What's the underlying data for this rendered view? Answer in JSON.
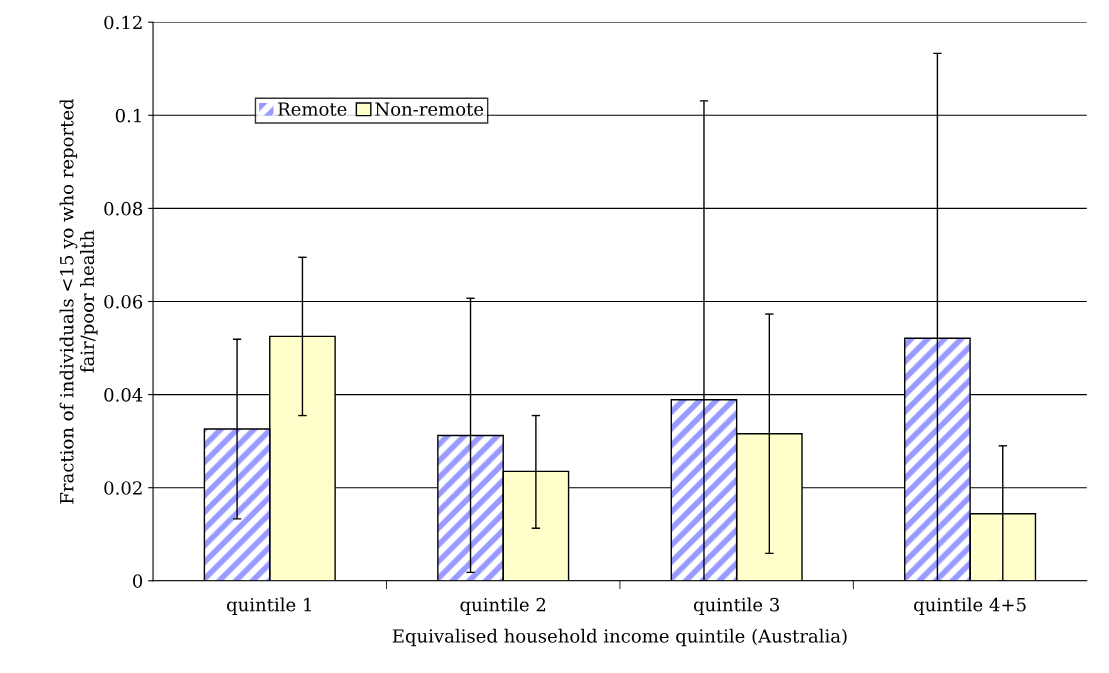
{
  "chart_data": {
    "type": "bar",
    "xlabel": "Equivalised household income quintile (Australia)",
    "ylabel": "Fraction of individuals <15 yo who reported\nfair/poor health",
    "categories": [
      "quintile 1",
      "quintile 2",
      "quintile 3",
      "quintile 4+5"
    ],
    "series": [
      {
        "name": "Remote",
        "color": "#9999ff",
        "values": [
          0.0326,
          0.0312,
          0.0389,
          0.0521
        ],
        "errors": [
          [
            0.0133,
            0.0519
          ],
          [
            0.0018,
            0.0607
          ],
          [
            0.0,
            0.1031
          ],
          [
            0.0,
            0.1133
          ]
        ]
      },
      {
        "name": "Non-remote",
        "color": "#ffffcc",
        "values": [
          0.0525,
          0.0235,
          0.0316,
          0.0144
        ],
        "errors": [
          [
            0.0355,
            0.0695
          ],
          [
            0.0113,
            0.0355
          ],
          [
            0.0059,
            0.0573
          ],
          [
            0.0,
            0.029
          ]
        ]
      }
    ],
    "ylim": [
      0,
      0.12
    ],
    "yticks": [
      0,
      0.02,
      0.04,
      0.06,
      0.08,
      0.1,
      0.12
    ],
    "grid": "y",
    "legend": "top left"
  }
}
